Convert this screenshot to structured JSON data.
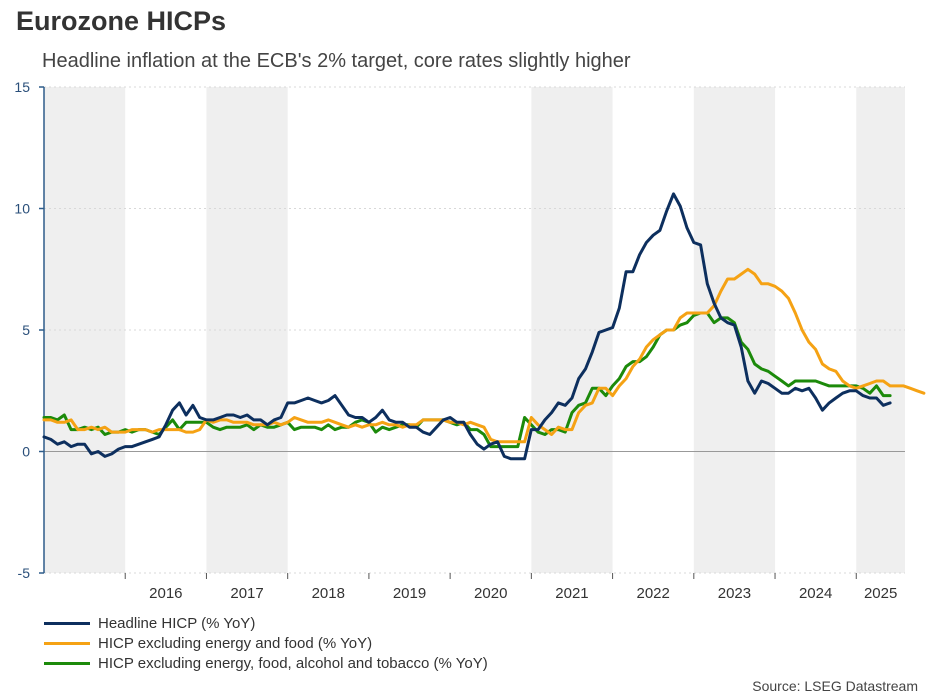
{
  "title": "Eurozone HICPs",
  "subtitle": "Headline inflation at the ECB's 2% target, core rates slightly higher",
  "source": "Source: LSEG Datastream",
  "colors": {
    "shade": "#efefef",
    "axis": "#2e5c8a",
    "zero_line": "#999999",
    "grid": "#d8d8d8"
  },
  "chart_data": {
    "type": "line",
    "title": "Eurozone HICPs",
    "subtitle": "Headline inflation at the ECB's 2% target, core rates slightly higher",
    "xlabel": "",
    "ylabel": "",
    "ylim": [
      -5,
      15
    ],
    "yticks": [
      -5,
      0,
      5,
      10,
      15
    ],
    "ytick_labels": [
      "-5",
      "0",
      "5",
      "10",
      "15"
    ],
    "xlim": [
      2015.0,
      2025.6
    ],
    "x_labels": [
      {
        "label": "2016",
        "x": 2016.5
      },
      {
        "label": "2017",
        "x": 2017.5
      },
      {
        "label": "2018",
        "x": 2018.5
      },
      {
        "label": "2019",
        "x": 2019.5
      },
      {
        "label": "2020",
        "x": 2020.5
      },
      {
        "label": "2021",
        "x": 2021.5
      },
      {
        "label": "2022",
        "x": 2022.5
      },
      {
        "label": "2023",
        "x": 2023.5
      },
      {
        "label": "2024",
        "x": 2024.5
      },
      {
        "label": "2025",
        "x": 2025.3
      }
    ],
    "year_boundaries": [
      2016,
      2017,
      2018,
      2019,
      2020,
      2021,
      2022,
      2023,
      2024,
      2025
    ],
    "shaded_years": [
      [
        2015.0,
        2016.0
      ],
      [
        2017.0,
        2018.0
      ],
      [
        2021.0,
        2022.0
      ],
      [
        2023.0,
        2024.0
      ],
      [
        2025.0,
        2025.6
      ]
    ],
    "grid": true,
    "legend_position": "bottom-left",
    "series": [
      {
        "name": "Headline HICP (% YoY)",
        "color": "#0d2f5e",
        "x_start": 2015.0,
        "x_step": 0.08333,
        "values": [
          0.6,
          0.5,
          0.3,
          0.4,
          0.2,
          0.3,
          0.3,
          -0.1,
          0.0,
          -0.2,
          -0.1,
          0.1,
          0.2,
          0.2,
          0.3,
          0.4,
          0.5,
          0.6,
          1.1,
          1.7,
          2.0,
          1.5,
          1.9,
          1.4,
          1.3,
          1.3,
          1.4,
          1.5,
          1.5,
          1.4,
          1.5,
          1.3,
          1.3,
          1.1,
          1.3,
          1.4,
          2.0,
          2.0,
          2.1,
          2.2,
          2.1,
          2.0,
          2.1,
          2.3,
          1.9,
          1.5,
          1.4,
          1.4,
          1.2,
          1.4,
          1.7,
          1.3,
          1.2,
          1.2,
          1.0,
          1.0,
          0.8,
          0.7,
          1.0,
          1.3,
          1.4,
          1.2,
          1.2,
          0.7,
          0.3,
          0.1,
          0.3,
          0.4,
          -0.2,
          -0.3,
          -0.3,
          -0.3,
          0.9,
          0.9,
          1.3,
          1.6,
          2.0,
          1.9,
          2.2,
          3.0,
          3.4,
          4.1,
          4.9,
          5.0,
          5.1,
          5.9,
          7.4,
          7.4,
          8.1,
          8.6,
          8.9,
          9.1,
          9.9,
          10.6,
          10.1,
          9.2,
          8.6,
          8.5,
          6.9,
          6.1,
          5.5,
          5.3,
          5.2,
          4.3,
          2.9,
          2.4,
          2.9,
          2.8,
          2.6,
          2.4,
          2.4,
          2.6,
          2.5,
          2.6,
          2.2,
          1.7,
          2.0,
          2.2,
          2.4,
          2.5,
          2.5,
          2.3,
          2.2,
          2.2,
          1.9,
          2.0
        ]
      },
      {
        "name": "HICP excluding energy and food (% YoY)",
        "color": "#f5a214",
        "x_start": 2015.0,
        "x_step": 0.08333,
        "values": [
          1.3,
          1.3,
          1.2,
          1.2,
          1.3,
          0.9,
          0.9,
          1.0,
          0.9,
          1.0,
          0.8,
          0.8,
          0.8,
          0.9,
          0.9,
          0.9,
          0.8,
          0.9,
          0.9,
          0.9,
          0.9,
          0.8,
          0.8,
          0.9,
          1.3,
          1.2,
          1.3,
          1.3,
          1.2,
          1.2,
          1.2,
          1.1,
          1.1,
          1.1,
          1.2,
          1.1,
          1.2,
          1.4,
          1.3,
          1.2,
          1.2,
          1.2,
          1.3,
          1.2,
          1.1,
          1.0,
          1.1,
          1.0,
          1.1,
          1.1,
          1.2,
          1.1,
          1.1,
          1.0,
          1.1,
          1.1,
          1.3,
          1.3,
          1.3,
          1.3,
          1.2,
          1.2,
          1.1,
          1.2,
          1.1,
          1.0,
          0.5,
          0.4,
          0.4,
          0.4,
          0.4,
          0.4,
          1.4,
          1.1,
          0.9,
          0.7,
          1.0,
          0.9,
          0.9,
          1.6,
          1.9,
          2.0,
          2.6,
          2.6,
          2.3,
          2.7,
          3.0,
          3.5,
          3.8,
          4.3,
          4.6,
          4.8,
          5.0,
          5.0,
          5.5,
          5.7,
          5.7,
          5.7,
          5.7,
          6.0,
          6.6,
          7.1,
          7.1,
          7.3,
          7.5,
          7.3,
          6.9,
          6.9,
          6.8,
          6.6,
          6.3,
          5.7,
          5.0,
          4.5,
          4.2,
          3.6,
          3.4,
          3.3,
          2.9,
          2.7,
          2.6,
          2.7,
          2.8,
          2.9,
          2.9,
          2.7,
          2.7,
          2.7,
          2.6,
          2.5,
          2.4
        ]
      },
      {
        "name": "HICP excluding energy, food, alcohol and tobacco (% YoY)",
        "color": "#1c8a0a",
        "x_start": 2015.0,
        "x_step": 0.08333,
        "values": [
          1.4,
          1.4,
          1.3,
          1.5,
          0.9,
          0.9,
          1.0,
          0.9,
          1.0,
          0.7,
          0.8,
          0.8,
          0.9,
          0.8,
          0.9,
          0.9,
          0.8,
          0.7,
          1.0,
          1.3,
          0.9,
          1.2,
          1.2,
          1.2,
          1.2,
          1.0,
          0.9,
          1.0,
          1.0,
          1.0,
          1.1,
          0.9,
          1.1,
          1.0,
          1.0,
          1.1,
          1.2,
          0.9,
          1.0,
          1.0,
          1.0,
          0.9,
          1.1,
          0.9,
          1.0,
          1.0,
          1.2,
          1.3,
          1.2,
          0.8,
          1.0,
          0.9,
          1.0,
          1.1,
          1.1,
          1.0,
          1.3,
          1.3,
          1.3,
          1.3,
          1.2,
          1.1,
          1.2,
          0.9,
          0.9,
          0.7,
          0.2,
          0.2,
          0.2,
          0.2,
          0.2,
          1.4,
          1.1,
          0.8,
          0.7,
          0.9,
          0.9,
          0.8,
          1.6,
          1.9,
          2.0,
          2.6,
          2.6,
          2.3,
          2.7,
          3.0,
          3.5,
          3.7,
          3.7,
          3.9,
          4.3,
          4.8,
          5.0,
          5.0,
          5.2,
          5.3,
          5.6,
          5.7,
          5.7,
          5.3,
          5.5,
          5.5,
          5.3,
          4.5,
          4.2,
          3.6,
          3.4,
          3.3,
          3.1,
          2.9,
          2.7,
          2.9,
          2.9,
          2.9,
          2.9,
          2.8,
          2.7,
          2.7,
          2.7,
          2.7,
          2.7,
          2.6,
          2.4,
          2.7,
          2.3,
          2.3
        ]
      }
    ]
  }
}
